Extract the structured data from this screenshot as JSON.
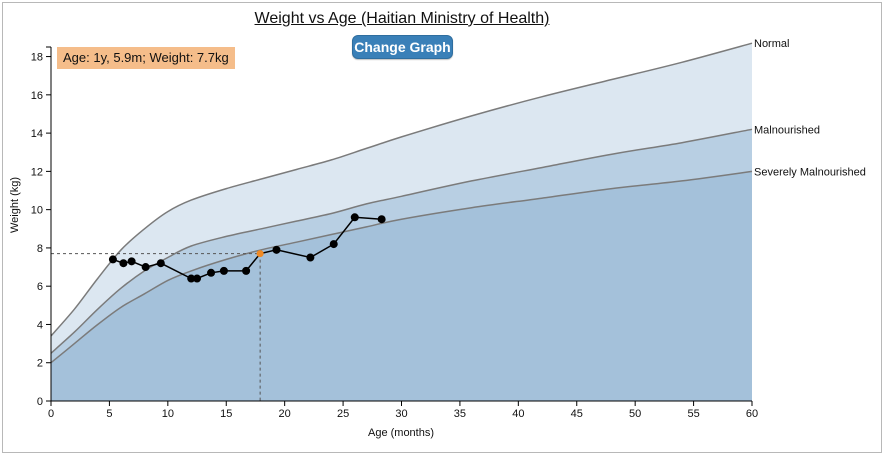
{
  "chart_data": {
    "type": "area",
    "title": "Weight vs Age (Haitian Ministry of Health)",
    "xlabel": "Age (months)",
    "ylabel": "Weight (kg)",
    "xlim": [
      0,
      60
    ],
    "ylim": [
      0,
      18.5
    ],
    "xticks": [
      "0",
      "5",
      "10",
      "15",
      "20",
      "25",
      "30",
      "35",
      "40",
      "45",
      "50",
      "55",
      "60"
    ],
    "yticks": [
      "0",
      "2",
      "4",
      "6",
      "8",
      "10",
      "12",
      "14",
      "16",
      "18"
    ],
    "grid": false,
    "bands": [
      {
        "name": "Normal",
        "fill": "#dce7f1",
        "x": [
          0,
          2,
          4,
          6,
          8,
          10,
          12,
          15,
          18,
          21,
          24,
          27,
          30,
          36,
          42,
          48,
          54,
          60
        ],
        "y": [
          3.4,
          4.8,
          6.4,
          7.9,
          9.0,
          9.9,
          10.5,
          11.1,
          11.6,
          12.1,
          12.6,
          13.2,
          13.8,
          14.9,
          15.9,
          16.8,
          17.7,
          18.7
        ]
      },
      {
        "name": "Malnourished",
        "fill": "#b8cfe3",
        "x": [
          0,
          2,
          4,
          6,
          8,
          10,
          12,
          15,
          18,
          21,
          24,
          27,
          30,
          36,
          42,
          48,
          54,
          60
        ],
        "y": [
          2.5,
          3.6,
          4.8,
          5.9,
          6.8,
          7.5,
          8.1,
          8.6,
          9.0,
          9.4,
          9.8,
          10.3,
          10.7,
          11.5,
          12.2,
          12.9,
          13.5,
          14.2
        ]
      },
      {
        "name": "Severely Malnourished",
        "fill": "#a4c1da",
        "x": [
          0,
          2,
          4,
          6,
          8,
          10,
          12,
          15,
          18,
          21,
          24,
          27,
          30,
          36,
          42,
          48,
          54,
          60
        ],
        "y": [
          2.0,
          3.0,
          4.0,
          4.9,
          5.6,
          6.3,
          6.8,
          7.4,
          7.9,
          8.3,
          8.7,
          9.1,
          9.5,
          10.1,
          10.6,
          11.1,
          11.5,
          12.0
        ]
      }
    ],
    "series": [
      {
        "type": "line",
        "color": "#000000",
        "x": [
          5.3,
          6.2,
          6.9,
          8.1,
          9.4,
          12.0,
          12.5,
          13.7,
          14.8,
          16.7,
          17.9,
          19.3,
          22.2,
          24.2,
          26.0,
          28.3
        ],
        "y": [
          7.4,
          7.2,
          7.3,
          7.0,
          7.2,
          6.4,
          6.4,
          6.7,
          6.8,
          6.8,
          7.7,
          7.9,
          7.5,
          8.2,
          9.6,
          9.5
        ]
      }
    ],
    "highlight": {
      "x": 17.9,
      "y": 7.7,
      "color": "#f08a24"
    },
    "tooltip": "Age: 1y, 5.9m; Weight: 7.7kg",
    "button": "Change Graph"
  }
}
